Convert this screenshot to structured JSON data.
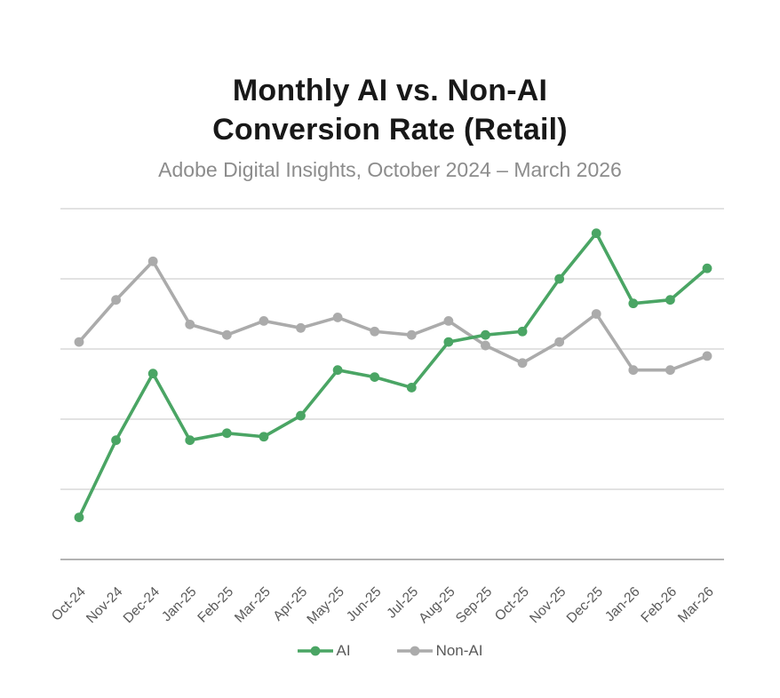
{
  "header": {
    "title_line1": "Monthly AI vs. Non-AI",
    "title_line2": "Conversion Rate (Retail)",
    "subtitle": "Adobe Digital Insights, October 2024 – March 2026"
  },
  "chart_data": {
    "type": "line",
    "title": "Monthly AI vs. Non-AI Conversion Rate (Retail)",
    "subtitle": "Adobe Digital Insights, October 2024 – March 2026",
    "categories": [
      "Oct-24",
      "Nov-24",
      "Dec-24",
      "Jan-25",
      "Feb-25",
      "Mar-25",
      "Apr-25",
      "May-25",
      "Jun-25",
      "Jul-25",
      "Aug-25",
      "Sep-25",
      "Oct-25",
      "Nov-25",
      "Dec-25",
      "Jan-26",
      "Feb-26",
      "Mar-26"
    ],
    "series": [
      {
        "name": "AI",
        "color": "#4aa564",
        "values": [
          0.6,
          1.7,
          2.65,
          1.7,
          1.8,
          1.75,
          2.05,
          2.7,
          2.6,
          2.45,
          3.1,
          3.2,
          3.25,
          4.0,
          4.65,
          3.65,
          3.7,
          4.15
        ]
      },
      {
        "name": "Non-AI",
        "color": "#ababab",
        "values": [
          3.1,
          3.7,
          4.25,
          3.35,
          3.2,
          3.4,
          3.3,
          3.45,
          3.25,
          3.2,
          3.4,
          3.05,
          2.8,
          3.1,
          3.5,
          2.7,
          2.7,
          2.9
        ]
      }
    ],
    "xlabel": "",
    "ylabel": "",
    "ylim": [
      0,
      5
    ],
    "gridline_values": [
      1,
      2,
      3,
      4,
      5
    ],
    "y_axis_labels_visible": false,
    "grid": true,
    "legend_position": "bottom",
    "colors": {
      "gridline": "#d9d9d9",
      "axis_line": "#b3b3b3",
      "tick_label": "#595959",
      "title": "#181818",
      "subtitle": "#8c8c8c",
      "legend_label": "#595959"
    }
  }
}
